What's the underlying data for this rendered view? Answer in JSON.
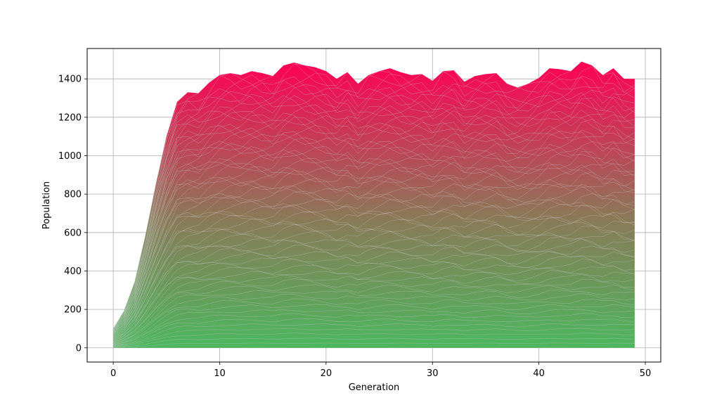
{
  "chart_data": {
    "type": "area",
    "stacked": true,
    "title": "",
    "xlabel": "Generation",
    "ylabel": "Population",
    "xlim": [
      -2.45,
      51.45
    ],
    "ylim": [
      -74,
      1558
    ],
    "xticks": [
      0,
      10,
      20,
      30,
      40,
      50
    ],
    "yticks": [
      0,
      200,
      400,
      600,
      800,
      1000,
      1200,
      1400
    ],
    "grid": true,
    "legend": "none",
    "color_bottom": "#4cb75e",
    "color_mid": "#8a7a58",
    "color_top": "#ff0055",
    "band_edge_color": "#c8c8c8",
    "x": [
      0,
      1,
      2,
      3,
      4,
      5,
      6,
      7,
      8,
      9,
      10,
      11,
      12,
      13,
      14,
      15,
      16,
      17,
      18,
      19,
      20,
      21,
      22,
      23,
      24,
      25,
      26,
      27,
      28,
      29,
      30,
      31,
      32,
      33,
      34,
      35,
      36,
      37,
      38,
      39,
      40,
      41,
      42,
      43,
      44,
      45,
      46,
      47,
      48,
      49
    ],
    "total": [
      100,
      190,
      340,
      580,
      850,
      1100,
      1280,
      1330,
      1325,
      1380,
      1420,
      1430,
      1420,
      1440,
      1430,
      1415,
      1470,
      1485,
      1470,
      1460,
      1440,
      1400,
      1435,
      1375,
      1420,
      1440,
      1455,
      1435,
      1420,
      1425,
      1390,
      1440,
      1445,
      1385,
      1415,
      1425,
      1430,
      1375,
      1355,
      1375,
      1405,
      1455,
      1450,
      1440,
      1490,
      1470,
      1420,
      1455,
      1400,
      1400
    ],
    "band_count": 60
  }
}
